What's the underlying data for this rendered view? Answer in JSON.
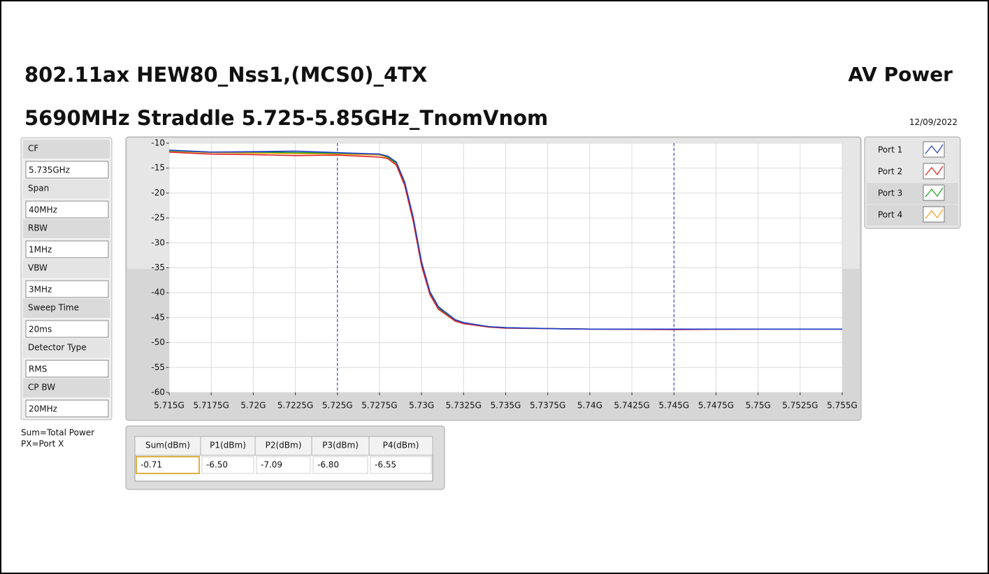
{
  "header": {
    "title": "802.11ax HEW80_Nss1,(MCS0)_4TX",
    "right_title": "AV Power",
    "subtitle": "5690MHz Straddle 5.725-5.85GHz_TnomVnom",
    "date": "12/09/2022"
  },
  "settings": [
    {
      "label": "CF",
      "value": "5.735GHz"
    },
    {
      "label": "Span",
      "value": "40MHz"
    },
    {
      "label": "RBW",
      "value": "1MHz"
    },
    {
      "label": "VBW",
      "value": "3MHz"
    },
    {
      "label": "Sweep Time",
      "value": "20ms"
    },
    {
      "label": "Detector Type",
      "value": "RMS"
    },
    {
      "label": "CP BW",
      "value": "20MHz"
    }
  ],
  "notes": [
    "Sum=Total Power",
    "PX=Port X"
  ],
  "table": {
    "columns": [
      "Sum(dBm)",
      "P1(dBm)",
      "P2(dBm)",
      "P3(dBm)",
      "P4(dBm)"
    ],
    "rows": [
      [
        "-0.71",
        "-6.50",
        "-7.09",
        "-6.80",
        "-6.55"
      ]
    ]
  },
  "chart_data": {
    "type": "line",
    "x": [
      5.715,
      5.7175,
      5.72,
      5.7225,
      5.725,
      5.7275,
      5.728,
      5.7285,
      5.729,
      5.7295,
      5.73,
      5.7305,
      5.731,
      5.732,
      5.7325,
      5.734,
      5.735,
      5.7375,
      5.74,
      5.745,
      5.75,
      5.755
    ],
    "series": [
      {
        "name": "Port 4",
        "color": "#f0a020",
        "values": [
          -11.6,
          -11.9,
          -12.0,
          -12.1,
          -12.2,
          -12.4,
          -12.9,
          -14.2,
          -18.2,
          -25.2,
          -34.2,
          -40.2,
          -43.1,
          -45.6,
          -46.1,
          -46.9,
          -47.0,
          -47.2,
          -47.3,
          -47.3,
          -47.3,
          -47.3
        ]
      },
      {
        "name": "Port 3",
        "color": "#20a020",
        "values": [
          -11.5,
          -11.8,
          -11.8,
          -11.9,
          -12.0,
          -12.2,
          -12.8,
          -14.0,
          -18.0,
          -25.0,
          -34.0,
          -40.0,
          -43.0,
          -45.5,
          -46.0,
          -46.8,
          -47.0,
          -47.2,
          -47.3,
          -47.3,
          -47.3,
          -47.3
        ]
      },
      {
        "name": "Port 2",
        "color": "#e02020",
        "values": [
          -11.8,
          -12.2,
          -12.3,
          -12.5,
          -12.4,
          -12.8,
          -13.1,
          -14.4,
          -18.5,
          -25.6,
          -34.6,
          -40.4,
          -43.3,
          -45.7,
          -46.2,
          -46.9,
          -47.1,
          -47.2,
          -47.3,
          -47.4,
          -47.3,
          -47.3
        ]
      },
      {
        "name": "Port 1",
        "color": "#1f3fd0",
        "values": [
          -11.4,
          -11.8,
          -11.7,
          -11.6,
          -11.9,
          -12.2,
          -12.6,
          -13.8,
          -17.8,
          -24.8,
          -33.8,
          -39.8,
          -42.8,
          -45.4,
          -46.0,
          -46.8,
          -47.0,
          -47.2,
          -47.3,
          -47.3,
          -47.3,
          -47.3
        ]
      }
    ],
    "legend_order": [
      3,
      2,
      1,
      0
    ],
    "markers": [
      5.725,
      5.745
    ],
    "xlim": [
      5.715,
      5.755
    ],
    "xticks": [
      {
        "value": 5.715,
        "label": "5.715G"
      },
      {
        "value": 5.7175,
        "label": "5.7175G"
      },
      {
        "value": 5.72,
        "label": "5.72G"
      },
      {
        "value": 5.7225,
        "label": "5.7225G"
      },
      {
        "value": 5.725,
        "label": "5.725G"
      },
      {
        "value": 5.7275,
        "label": "5.7275G"
      },
      {
        "value": 5.73,
        "label": "5.73G"
      },
      {
        "value": 5.7325,
        "label": "5.7325G"
      },
      {
        "value": 5.735,
        "label": "5.735G"
      },
      {
        "value": 5.7375,
        "label": "5.7375G"
      },
      {
        "value": 5.74,
        "label": "5.74G"
      },
      {
        "value": 5.7425,
        "label": "5.7425G"
      },
      {
        "value": 5.745,
        "label": "5.745G"
      },
      {
        "value": 5.7475,
        "label": "5.7475G"
      },
      {
        "value": 5.75,
        "label": "5.75G"
      },
      {
        "value": 5.7525,
        "label": "5.7525G"
      },
      {
        "value": 5.755,
        "label": "5.755G"
      }
    ],
    "ylim": [
      -60,
      -10
    ],
    "yticks": [
      -10,
      -15,
      -20,
      -25,
      -30,
      -35,
      -40,
      -45,
      -50,
      -55,
      -60
    ],
    "grid": true
  }
}
